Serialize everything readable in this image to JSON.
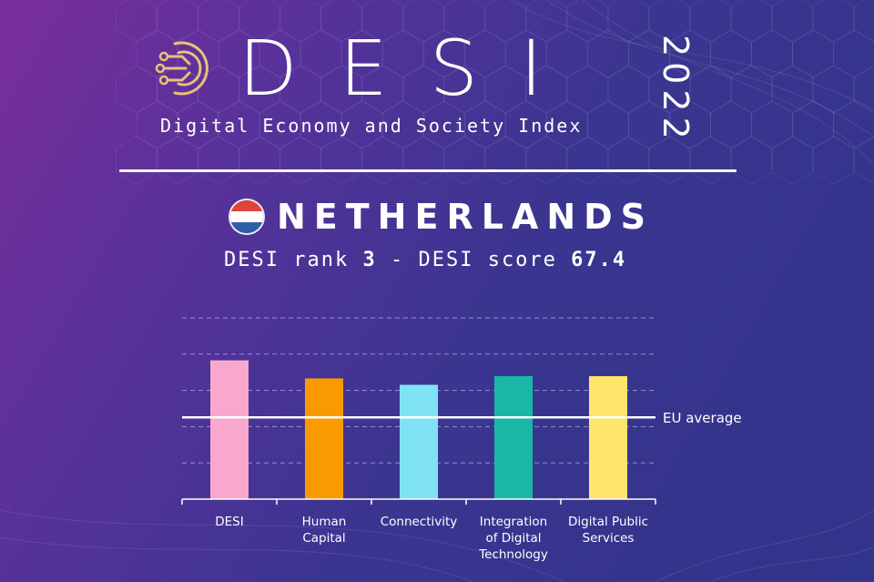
{
  "header": {
    "title_word": "DESI",
    "year": "2022",
    "subtitle": "Digital Economy and Society Index"
  },
  "country": {
    "name": "NETHERLANDS",
    "flag_colors": [
      "#e0423c",
      "#ffffff",
      "#2f5ea8"
    ]
  },
  "summary": {
    "rank_label": "DESI rank",
    "rank_value": "3",
    "separator": "-",
    "score_label": "DESI score",
    "score_value": "67.4"
  },
  "chart_data": {
    "type": "bar",
    "title": "",
    "categories": [
      "DESI",
      "Human Capital",
      "Connectivity",
      "Integration of Digital Technology",
      "Digital Public Services"
    ],
    "category_lines": [
      [
        "DESI"
      ],
      [
        "Human",
        "Capital"
      ],
      [
        "Connectivity"
      ],
      [
        "Integration",
        "of Digital",
        "Technology"
      ],
      [
        "Digital Public",
        "Services"
      ]
    ],
    "values": [
      67.4,
      58.6,
      55.5,
      59.7,
      59.7
    ],
    "colors": [
      "#f7a8cc",
      "#fb9a00",
      "#80e3f5",
      "#19b8a6",
      "#fde56c"
    ],
    "reference_line": {
      "label": "EU average",
      "value": 39.7
    },
    "ylim": [
      0,
      88
    ],
    "gridlines": [
      17.6,
      35.2,
      52.8,
      70.4,
      88
    ],
    "grid": true,
    "xlabel": "",
    "ylabel": ""
  }
}
